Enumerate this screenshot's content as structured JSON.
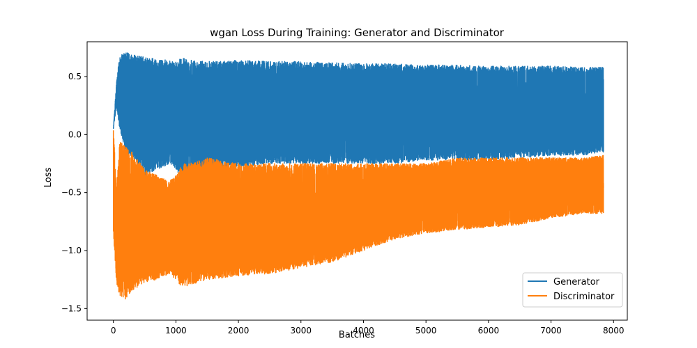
{
  "chart_data": {
    "type": "line",
    "title": "wgan Loss During Training: Generator and Discriminator",
    "xlabel": "Batches",
    "ylabel": "Loss",
    "xlim": [
      -420,
      8220
    ],
    "ylim": [
      -1.6,
      0.8
    ],
    "xticks": [
      0,
      1000,
      2000,
      3000,
      4000,
      5000,
      6000,
      7000,
      8000
    ],
    "xtick_labels": [
      "0",
      "1000",
      "2000",
      "3000",
      "4000",
      "5000",
      "6000",
      "7000",
      "8000"
    ],
    "yticks": [
      -1.5,
      -1.0,
      -0.5,
      0.0,
      0.5
    ],
    "ytick_labels": [
      "−1.5",
      "−1.0",
      "−0.5",
      "0.0",
      "0.5"
    ],
    "grid": false,
    "legend_position": "lower-right",
    "series": [
      {
        "name": "Generator",
        "color": "#1f77b4",
        "envelope_x": [
          0,
          50,
          100,
          200,
          300,
          500,
          700,
          900,
          1000,
          1100,
          1200,
          1500,
          2000,
          2500,
          3000,
          3500,
          4000,
          4500,
          5000,
          5500,
          6000,
          6500,
          7000,
          7500,
          7840
        ],
        "envelope_upper": [
          0.05,
          0.45,
          0.68,
          0.71,
          0.69,
          0.67,
          0.65,
          0.64,
          0.63,
          0.66,
          0.65,
          0.63,
          0.64,
          0.63,
          0.63,
          0.62,
          0.61,
          0.61,
          0.6,
          0.6,
          0.59,
          0.59,
          0.59,
          0.58,
          0.58
        ],
        "envelope_lower": [
          0.05,
          0.25,
          0.05,
          -0.15,
          -0.2,
          -0.35,
          -0.3,
          -0.25,
          -0.3,
          -0.4,
          -0.35,
          -0.3,
          -0.28,
          -0.25,
          -0.25,
          -0.25,
          -0.25,
          -0.25,
          -0.22,
          -0.22,
          -0.22,
          -0.2,
          -0.18,
          -0.18,
          -0.15
        ],
        "n_points": 7840
      },
      {
        "name": "Discriminator",
        "color": "#ff7f0e",
        "envelope_x": [
          0,
          50,
          100,
          200,
          300,
          500,
          700,
          900,
          1000,
          1100,
          1200,
          1500,
          2000,
          2500,
          3000,
          3500,
          4000,
          4500,
          5000,
          5500,
          6000,
          6500,
          7000,
          7500,
          7840
        ],
        "envelope_upper": [
          0.06,
          -0.45,
          -0.05,
          -0.1,
          -0.15,
          -0.3,
          -0.35,
          -0.4,
          -0.35,
          -0.25,
          -0.25,
          -0.2,
          -0.25,
          -0.25,
          -0.25,
          -0.25,
          -0.25,
          -0.25,
          -0.25,
          -0.2,
          -0.2,
          -0.2,
          -0.2,
          -0.2,
          -0.18
        ],
        "envelope_lower": [
          -0.85,
          -1.28,
          -1.4,
          -1.42,
          -1.35,
          -1.28,
          -1.25,
          -1.2,
          -1.25,
          -1.32,
          -1.3,
          -1.25,
          -1.22,
          -1.2,
          -1.15,
          -1.1,
          -1.0,
          -0.9,
          -0.85,
          -0.82,
          -0.8,
          -0.78,
          -0.72,
          -0.68,
          -0.68
        ],
        "n_points": 7840
      }
    ]
  }
}
